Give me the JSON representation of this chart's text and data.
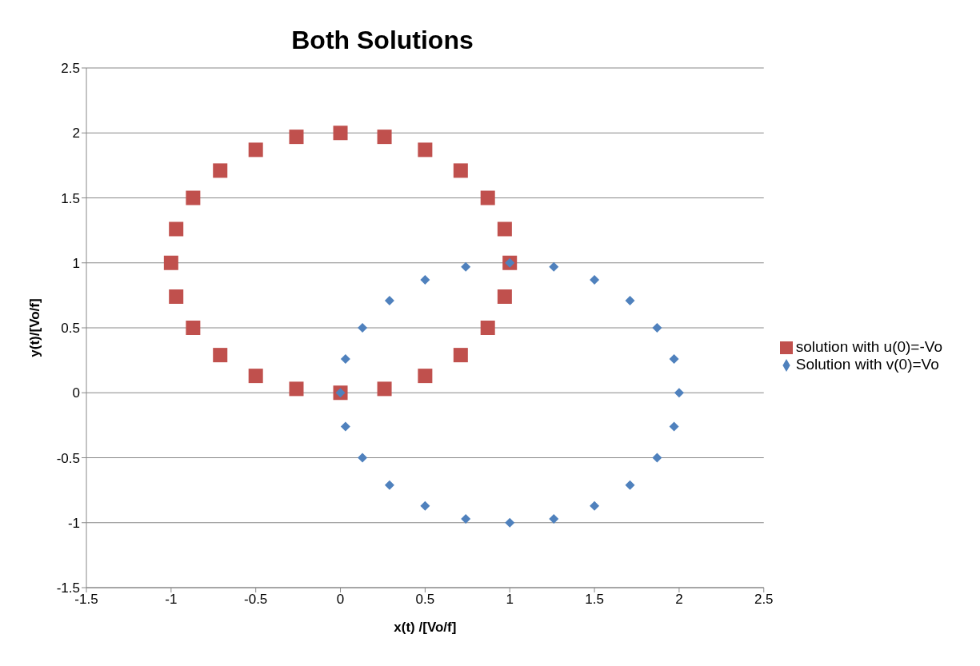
{
  "chart_data": {
    "type": "scatter",
    "title": "Both Solutions",
    "xlabel": "x(t) /[Vo/f]",
    "ylabel": "y(t)/[Vo/f]",
    "xlim": [
      -1.5,
      2.5
    ],
    "xticks": [
      -1.5,
      -1,
      -0.5,
      0,
      0.5,
      1,
      1.5,
      2,
      2.5
    ],
    "ylim": [
      -1.5,
      2.5
    ],
    "yticks": [
      -1.5,
      -1,
      -0.5,
      0,
      0.5,
      1,
      1.5,
      2,
      2.5
    ],
    "grid": "y",
    "legend": "right",
    "series": [
      {
        "name": "solution with u(0)=-Vo",
        "color": "#c0504d",
        "marker": "square",
        "x": [
          0,
          0.26,
          0.5,
          0.71,
          0.87,
          0.97,
          1,
          0.97,
          0.87,
          0.71,
          0.5,
          0.26,
          0,
          -0.26,
          -0.5,
          -0.71,
          -0.87,
          -0.97,
          -1,
          -0.97,
          -0.87,
          -0.71,
          -0.5,
          -0.26
        ],
        "values": [
          0,
          0.03,
          0.13,
          0.29,
          0.5,
          0.74,
          1,
          1.26,
          1.5,
          1.71,
          1.87,
          1.97,
          2,
          1.97,
          1.87,
          1.71,
          1.5,
          1.26,
          1,
          0.74,
          0.5,
          0.29,
          0.13,
          0.03
        ]
      },
      {
        "name": "Solution with v(0)=Vo",
        "color": "#4f81bd",
        "marker": "diamond",
        "x": [
          0,
          0.03,
          0.13,
          0.29,
          0.5,
          0.74,
          1,
          1.26,
          1.5,
          1.71,
          1.87,
          1.97,
          2,
          1.97,
          1.87,
          1.71,
          1.5,
          1.26,
          1,
          0.74,
          0.5,
          0.29,
          0.13,
          0.03
        ],
        "values": [
          0,
          0.26,
          0.5,
          0.71,
          0.87,
          0.97,
          1,
          0.97,
          0.87,
          0.71,
          0.5,
          0.26,
          0,
          -0.26,
          -0.5,
          -0.71,
          -0.87,
          -0.97,
          -1,
          -0.97,
          -0.87,
          -0.71,
          -0.5,
          -0.26
        ]
      }
    ]
  }
}
